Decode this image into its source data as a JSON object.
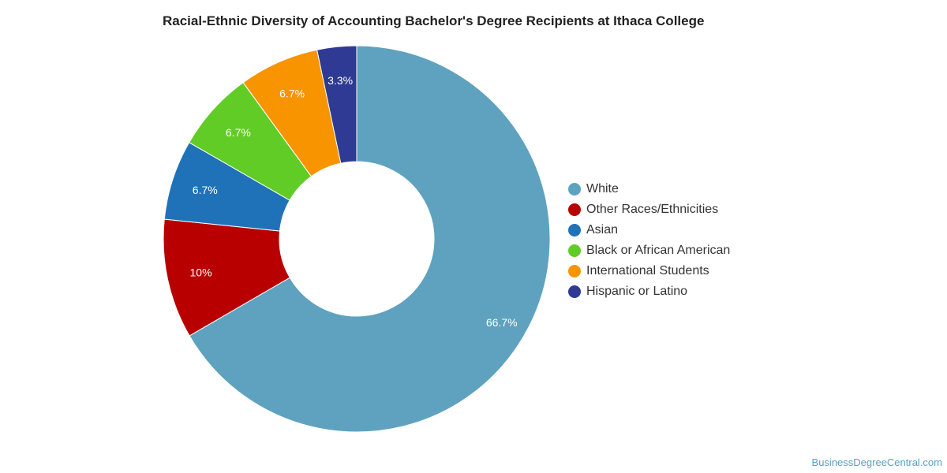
{
  "title": "Racial-Ethnic Diversity of Accounting Bachelor's Degree Recipients at Ithaca College",
  "credit": "BusinessDegreeCentral.com",
  "chart_data": {
    "type": "pie",
    "donut": true,
    "legend_position": "right",
    "slices": [
      {
        "label": "White",
        "value": 66.7,
        "display": "66.7%",
        "color": "#5ea2bf"
      },
      {
        "label": "Other Races/Ethnicities",
        "value": 10,
        "display": "10%",
        "color": "#b90000"
      },
      {
        "label": "Asian",
        "value": 6.7,
        "display": "6.7%",
        "color": "#1f72b8"
      },
      {
        "label": "Black or African American",
        "value": 6.7,
        "display": "6.7%",
        "color": "#62cc27"
      },
      {
        "label": "International Students",
        "value": 6.7,
        "display": "6.7%",
        "color": "#f79400"
      },
      {
        "label": "Hispanic or Latino",
        "value": 3.3,
        "display": "3.3%",
        "color": "#2e3a93"
      }
    ]
  }
}
